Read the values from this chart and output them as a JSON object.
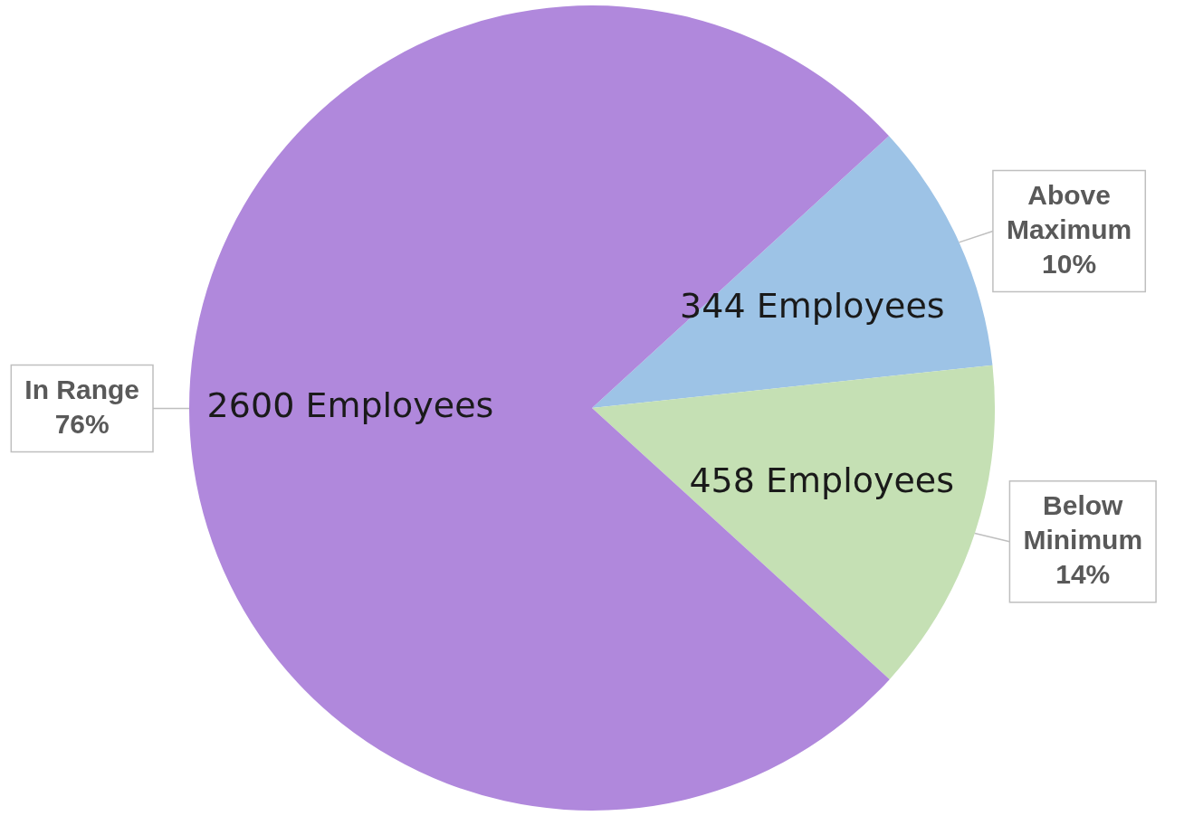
{
  "chart_data": {
    "type": "pie",
    "categories": [
      "Above Maximum",
      "Below Minimum",
      "In Range"
    ],
    "values": [
      344,
      458,
      2600
    ],
    "value_labels": [
      "344 Employees",
      "458 Employees",
      "2600 Employees"
    ],
    "annotations": [
      "10%",
      "14%",
      "76%"
    ],
    "colors": [
      "#9dc3e6",
      "#c5e0b4",
      "#b088dc"
    ],
    "legend": false
  }
}
